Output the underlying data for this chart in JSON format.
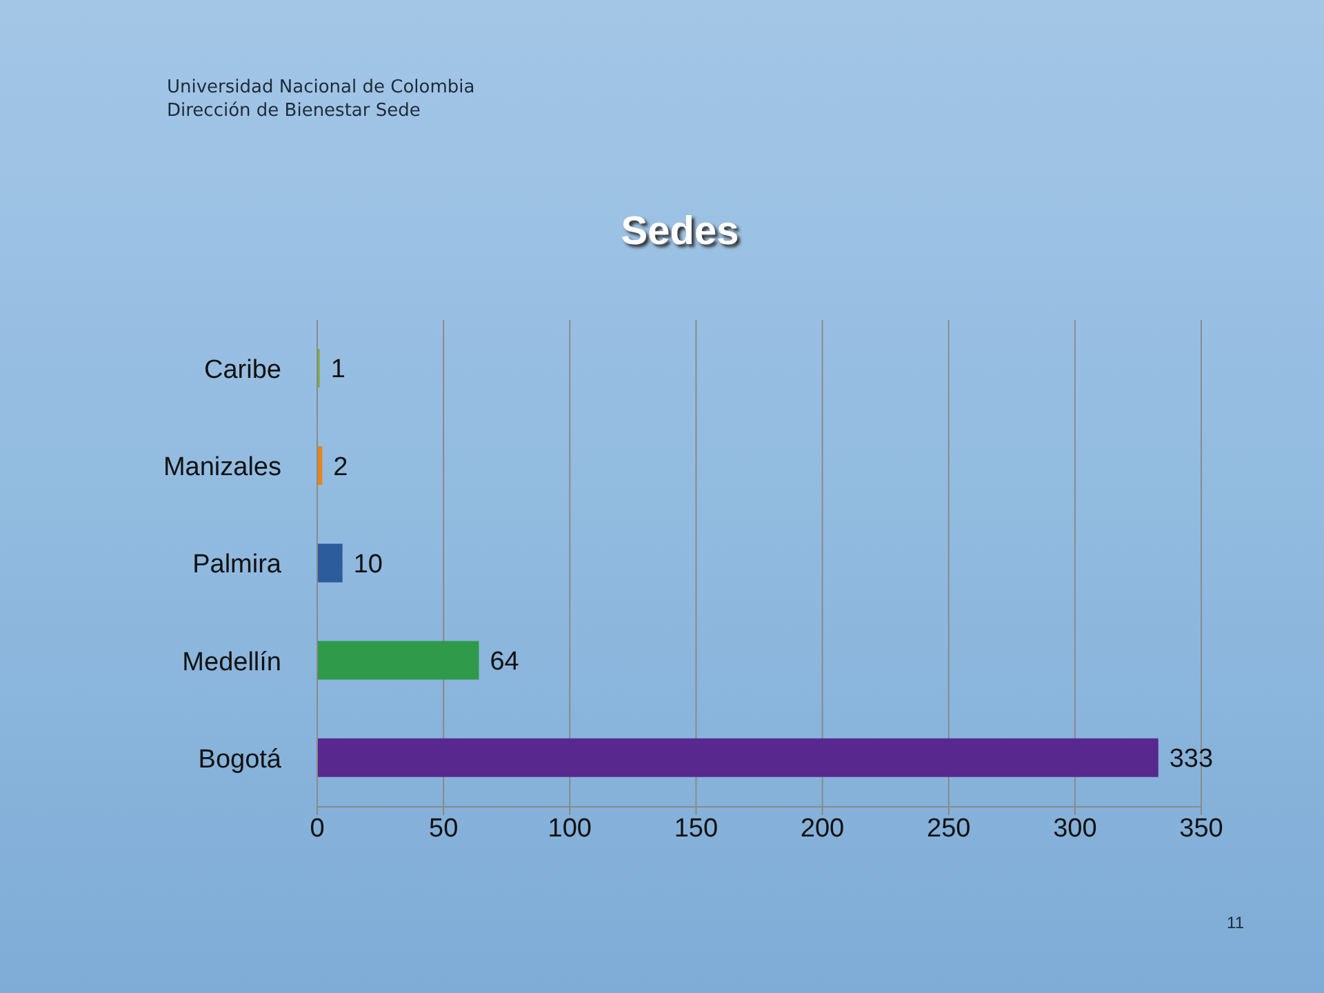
{
  "chart_data": {
    "type": "bar",
    "orientation": "horizontal",
    "title": "Sedes",
    "annotations": [
      "Universidad Nacional de Colombia",
      "Dirección de Bienestar Sede",
      "11"
    ],
    "categories": [
      "Caribe",
      "Manizales",
      "Palmira",
      "Medellín",
      "Bogotá"
    ],
    "values": [
      1,
      2,
      10,
      64,
      333
    ],
    "colors": [
      "#7fae3c",
      "#e8841c",
      "#2c5c9c",
      "#2e9a4a",
      "#58288e"
    ],
    "xlim": [
      0,
      350
    ],
    "xticks": [
      0,
      50,
      100,
      150,
      200,
      250,
      300,
      350
    ],
    "grid": "x",
    "data_labels": true
  }
}
